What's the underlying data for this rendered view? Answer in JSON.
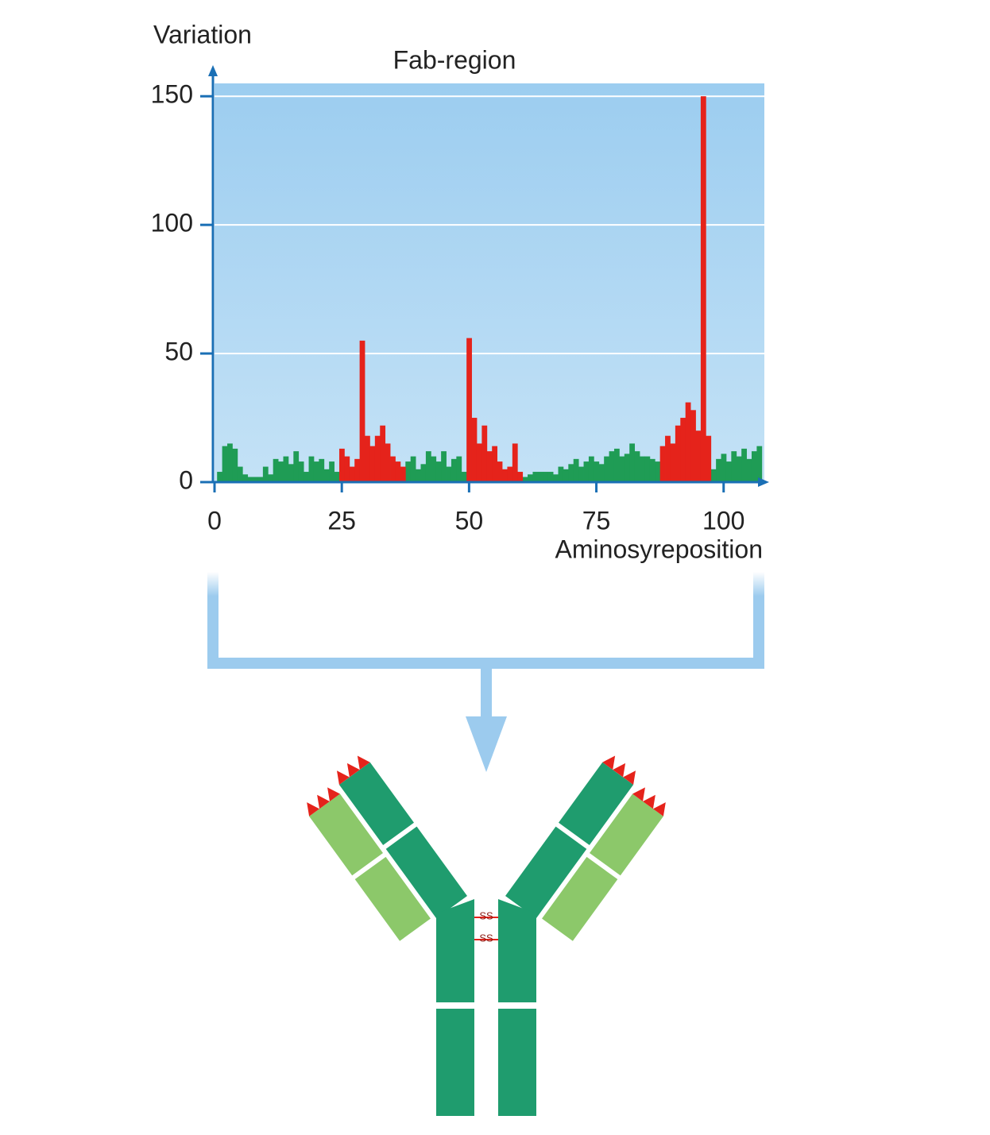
{
  "chart_data": {
    "type": "bar",
    "title": "Fab-region",
    "ylabel": "Variation",
    "xlabel": "Aminosyreposition",
    "x": [
      1,
      2,
      3,
      4,
      5,
      6,
      7,
      8,
      9,
      10,
      11,
      12,
      13,
      14,
      15,
      16,
      17,
      18,
      19,
      20,
      21,
      22,
      23,
      24,
      25,
      26,
      27,
      28,
      29,
      30,
      31,
      32,
      33,
      34,
      35,
      36,
      37,
      38,
      39,
      40,
      41,
      42,
      43,
      44,
      45,
      46,
      47,
      48,
      49,
      50,
      51,
      52,
      53,
      54,
      55,
      56,
      57,
      58,
      59,
      60,
      61,
      62,
      63,
      64,
      65,
      66,
      67,
      68,
      69,
      70,
      71,
      72,
      73,
      74,
      75,
      76,
      77,
      78,
      79,
      80,
      81,
      82,
      83,
      84,
      85,
      86,
      87,
      88,
      89,
      90,
      91,
      92,
      93,
      94,
      95,
      96,
      97,
      98,
      99,
      100,
      101,
      102,
      103,
      104,
      105,
      106,
      107
    ],
    "series": [
      {
        "color": "#1f9c55",
        "values": [
          4,
          14,
          15,
          13,
          6,
          3,
          2,
          2,
          2,
          6,
          3,
          9,
          8,
          10,
          7,
          12,
          8,
          4,
          10,
          8,
          9,
          5,
          8,
          4,
          null,
          null,
          null,
          null,
          null,
          null,
          null,
          null,
          null,
          null,
          null,
          null,
          null,
          8,
          10,
          5,
          7,
          12,
          10,
          8,
          12,
          6,
          9,
          10,
          4,
          null,
          null,
          null,
          null,
          null,
          null,
          null,
          null,
          null,
          null,
          null,
          2,
          3,
          4,
          4,
          4,
          4,
          3,
          6,
          5,
          7,
          9,
          6,
          8,
          10,
          8,
          7,
          10,
          12,
          13,
          10,
          11,
          15,
          12,
          10,
          10,
          9,
          8,
          null,
          null,
          null,
          null,
          null,
          null,
          null,
          null,
          null,
          null,
          5,
          9,
          11,
          8,
          12,
          10,
          13,
          9,
          12,
          14
        ]
      },
      {
        "color": "#e5231b",
        "values": [
          null,
          null,
          null,
          null,
          null,
          null,
          null,
          null,
          null,
          null,
          null,
          null,
          null,
          null,
          null,
          null,
          null,
          null,
          null,
          null,
          null,
          null,
          null,
          null,
          13,
          10,
          6,
          9,
          55,
          18,
          14,
          18,
          22,
          15,
          10,
          8,
          6,
          null,
          null,
          null,
          null,
          null,
          null,
          null,
          null,
          null,
          null,
          null,
          null,
          56,
          25,
          15,
          22,
          12,
          14,
          8,
          5,
          6,
          15,
          4,
          null,
          null,
          null,
          null,
          null,
          null,
          null,
          null,
          null,
          null,
          null,
          null,
          null,
          null,
          null,
          null,
          null,
          null,
          null,
          null,
          null,
          null,
          null,
          null,
          null,
          null,
          null,
          14,
          18,
          15,
          22,
          25,
          31,
          28,
          20,
          150,
          18,
          null,
          null,
          null,
          null,
          null,
          null,
          null,
          null,
          null,
          null
        ]
      }
    ],
    "xlim": [
      0,
      108
    ],
    "ylim": [
      0,
      155
    ],
    "xticks": [
      0,
      25,
      50,
      75,
      100
    ],
    "yticks": [
      0,
      50,
      100,
      150
    ],
    "grid": true
  },
  "diagram_labels": [
    "SS",
    "SS"
  ]
}
